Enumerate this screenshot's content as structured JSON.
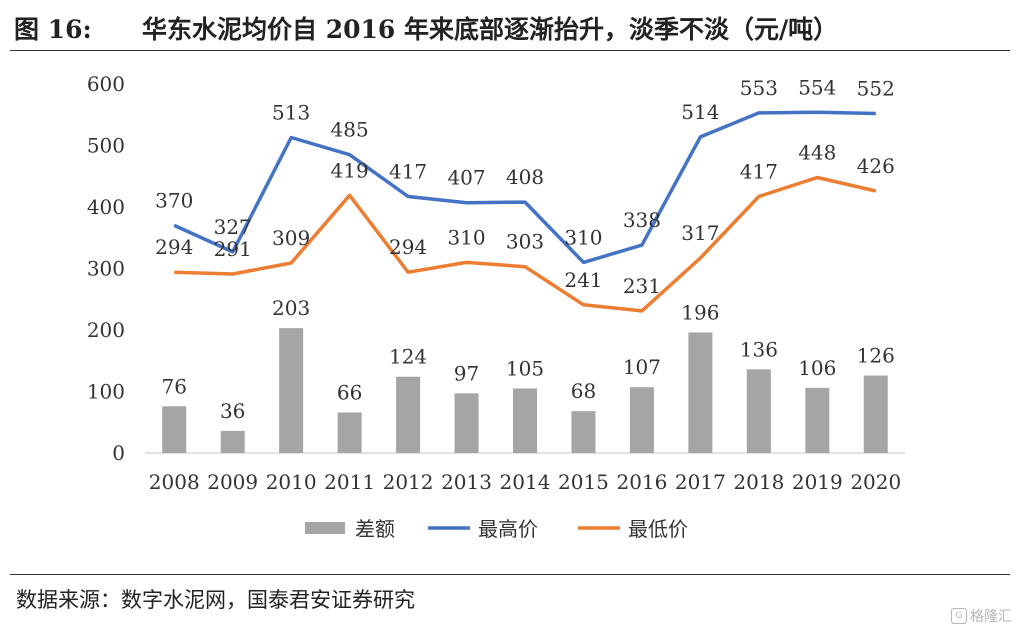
{
  "header": {
    "figure_number": "图 16:",
    "title": "华东水泥均价自 2016 年来底部逐渐抬升，淡季不淡（元/吨）"
  },
  "source": "数据来源：数字水泥网，国泰君安证券研究",
  "watermark": {
    "logo": "G",
    "text": "格隆汇"
  },
  "colors": {
    "bar": "#a5a5a5",
    "high": "#4472c4",
    "low": "#ed7d31",
    "axis": "#d9d9d9"
  },
  "chart_data": {
    "type": "bar+line",
    "categories": [
      "2008",
      "2009",
      "2010",
      "2011",
      "2012",
      "2013",
      "2014",
      "2015",
      "2016",
      "2017",
      "2018",
      "2019",
      "2020"
    ],
    "series": [
      {
        "name": "差额",
        "type": "bar",
        "values": [
          76,
          36,
          203,
          66,
          124,
          97,
          105,
          68,
          107,
          196,
          136,
          106,
          126
        ]
      },
      {
        "name": "最高价",
        "type": "line",
        "values": [
          370,
          327,
          513,
          485,
          417,
          407,
          408,
          310,
          338,
          514,
          553,
          554,
          552
        ]
      },
      {
        "name": "最低价",
        "type": "line",
        "values": [
          294,
          291,
          309,
          419,
          294,
          310,
          303,
          241,
          231,
          317,
          417,
          448,
          426
        ]
      }
    ],
    "ylim": [
      0,
      600
    ],
    "yticks": [
      "0",
      "100",
      "200",
      "300",
      "400",
      "500",
      "600"
    ],
    "grid": false,
    "legend_position": "bottom"
  }
}
